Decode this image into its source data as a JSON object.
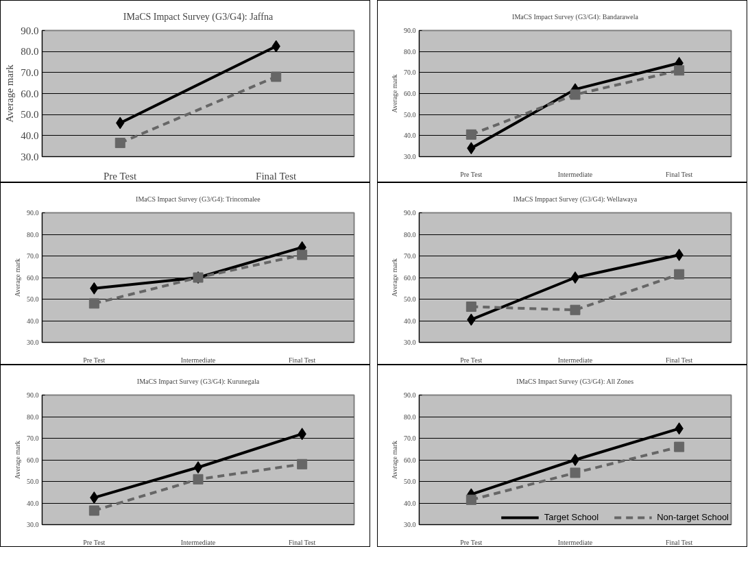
{
  "chart_data": [
    {
      "type": "line",
      "title": "IMaCS Impact Survey (G3/G4): Jaffna",
      "ylabel": "Average mark",
      "categories": [
        "Pre Test",
        "Final Test"
      ],
      "ylim": [
        30,
        90
      ],
      "yticks": [
        {
          "value": 30,
          "label": "30.0"
        },
        {
          "value": 40,
          "label": "40.0"
        },
        {
          "value": 50,
          "label": "50.0"
        },
        {
          "value": 60,
          "label": "60.0"
        },
        {
          "value": 70,
          "label": "70.0"
        },
        {
          "value": 80,
          "label": "80.0"
        },
        {
          "value": 90,
          "label": "90.0"
        }
      ],
      "grid": "y",
      "series": [
        {
          "color": "#000000",
          "marker": "diamond",
          "line_style": "solid",
          "values": [
            46,
            82.5
          ]
        },
        {
          "color": "#666666",
          "marker": "square",
          "line_style": "dashed",
          "values": [
            36.5,
            68
          ]
        }
      ]
    },
    {
      "type": "line",
      "title": "IMaCS Impact Survey (G3/G4): Bandarawela",
      "ylabel": "Average mark",
      "categories": [
        "Pre Test",
        "Intermediate",
        "Final Test"
      ],
      "ylim": [
        30,
        90
      ],
      "yticks": [
        {
          "value": 30,
          "label": "30.0"
        },
        {
          "value": 40,
          "label": "40.0"
        },
        {
          "value": 50,
          "label": "50.0"
        },
        {
          "value": 60,
          "label": "60.0"
        },
        {
          "value": 70,
          "label": "70.0"
        },
        {
          "value": 80,
          "label": "80.0"
        },
        {
          "value": 90,
          "label": "90.0"
        }
      ],
      "grid": "y",
      "series": [
        {
          "color": "#000000",
          "marker": "diamond",
          "line_style": "solid",
          "values": [
            34,
            62,
            74.5
          ]
        },
        {
          "color": "#666666",
          "marker": "square",
          "line_style": "dashed",
          "values": [
            40.5,
            59.5,
            71
          ]
        }
      ]
    },
    {
      "type": "line",
      "title": "IMaCS Impact Survey (G3/G4): Trincomalee",
      "ylabel": "Average mark",
      "categories": [
        "Pre Test",
        "Intermediate",
        "Final Test"
      ],
      "ylim": [
        30,
        90
      ],
      "yticks": [
        {
          "value": 30,
          "label": "30.0"
        },
        {
          "value": 40,
          "label": "40.0"
        },
        {
          "value": 50,
          "label": "50.0"
        },
        {
          "value": 60,
          "label": "60.0"
        },
        {
          "value": 70,
          "label": "70.0"
        },
        {
          "value": 80,
          "label": "80.0"
        },
        {
          "value": 90,
          "label": "90.0"
        }
      ],
      "grid": "y",
      "series": [
        {
          "color": "#000000",
          "marker": "diamond",
          "line_style": "solid",
          "values": [
            55,
            60,
            74
          ]
        },
        {
          "color": "#666666",
          "marker": "square",
          "line_style": "dashed",
          "values": [
            48,
            60,
            70.5
          ]
        }
      ]
    },
    {
      "type": "line",
      "title": "IMaCS Imppact Survey (G3/G4): Wellawaya",
      "ylabel": "Average mark",
      "categories": [
        "Pre Test",
        "Intermediate",
        "Final Test"
      ],
      "ylim": [
        30,
        90
      ],
      "yticks": [
        {
          "value": 30,
          "label": "30.0"
        },
        {
          "value": 40,
          "label": "40.0"
        },
        {
          "value": 50,
          "label": "50.0"
        },
        {
          "value": 60,
          "label": "60.0"
        },
        {
          "value": 70,
          "label": "70.0"
        },
        {
          "value": 80,
          "label": "80.0"
        },
        {
          "value": 90,
          "label": "90.0"
        }
      ],
      "grid": "y",
      "series": [
        {
          "color": "#000000",
          "marker": "diamond",
          "line_style": "solid",
          "values": [
            40.5,
            60,
            70.5
          ]
        },
        {
          "color": "#666666",
          "marker": "square",
          "line_style": "dashed",
          "values": [
            46.5,
            45,
            61.5
          ]
        }
      ]
    },
    {
      "type": "line",
      "title": "IMaCS Impact Survey (G3/G4): Kurunegala",
      "ylabel": "Average mark",
      "categories": [
        "Pre Test",
        "Intermediate",
        "Final Test"
      ],
      "ylim": [
        30,
        90
      ],
      "yticks": [
        {
          "value": 30,
          "label": "30.0"
        },
        {
          "value": 40,
          "label": "40.0"
        },
        {
          "value": 50,
          "label": "50.0"
        },
        {
          "value": 60,
          "label": "60.0"
        },
        {
          "value": 70,
          "label": "70.0"
        },
        {
          "value": 80,
          "label": "80.0"
        },
        {
          "value": 90,
          "label": "90.0"
        }
      ],
      "grid": "y",
      "series": [
        {
          "color": "#000000",
          "marker": "diamond",
          "line_style": "solid",
          "values": [
            42.5,
            56.5,
            72
          ]
        },
        {
          "color": "#666666",
          "marker": "square",
          "line_style": "dashed",
          "values": [
            36.5,
            51,
            58
          ]
        }
      ]
    },
    {
      "type": "line",
      "title": "IMaCS Impact Survey (G3/G4): All Zones",
      "ylabel": "Average mark",
      "categories": [
        "Pre Test",
        "Intermediate",
        "Final Test"
      ],
      "ylim": [
        30,
        90
      ],
      "yticks": [
        {
          "value": 30,
          "label": "30.0"
        },
        {
          "value": 40,
          "label": "40.0"
        },
        {
          "value": 50,
          "label": "50.0"
        },
        {
          "value": 60,
          "label": "60.0"
        },
        {
          "value": 70,
          "label": "70.0"
        },
        {
          "value": 80,
          "label": "80.0"
        },
        {
          "value": 90,
          "label": "90.0"
        }
      ],
      "grid": "y",
      "legend": "bottom",
      "series": [
        {
          "name": "Target School",
          "color": "#000000",
          "marker": "diamond",
          "line_style": "solid",
          "values": [
            44,
            60,
            74.5
          ]
        },
        {
          "name": "Non-target School",
          "color": "#666666",
          "marker": "square",
          "line_style": "dashed",
          "values": [
            41.5,
            54,
            66
          ]
        }
      ]
    }
  ]
}
